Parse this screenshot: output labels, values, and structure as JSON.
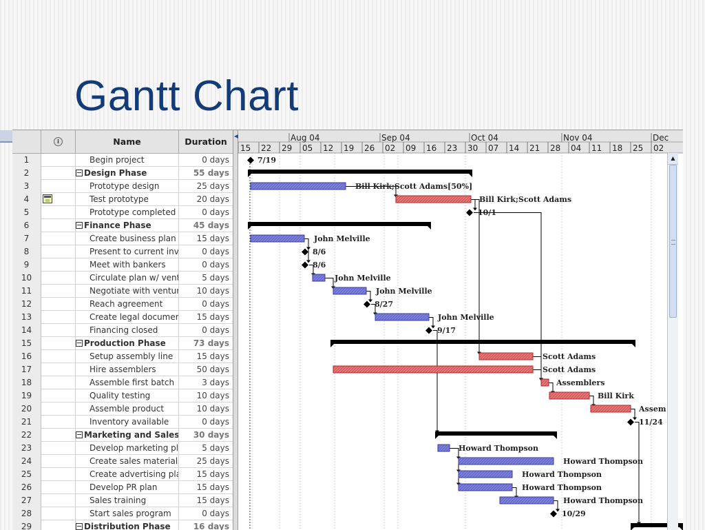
{
  "slide": {
    "title": "Gantt Chart"
  },
  "grid": {
    "headers": {
      "indicator_icon": "info-icon",
      "name": "Name",
      "duration": "Duration"
    },
    "rows": [
      {
        "id": "1",
        "name": "Begin project",
        "duration": "0 days",
        "summary": false
      },
      {
        "id": "2",
        "name": "Design Phase",
        "duration": "55 days",
        "summary": true
      },
      {
        "id": "3",
        "name": "Prototype design",
        "duration": "25 days",
        "summary": false
      },
      {
        "id": "4",
        "name": "Test prototype",
        "duration": "20 days",
        "summary": false,
        "icon": "calendar-note-icon"
      },
      {
        "id": "5",
        "name": "Prototype completed",
        "duration": "0 days",
        "summary": false
      },
      {
        "id": "6",
        "name": "Finance Phase",
        "duration": "45 days",
        "summary": true
      },
      {
        "id": "7",
        "name": "Create business plan",
        "duration": "15 days",
        "summary": false
      },
      {
        "id": "8",
        "name": "Present to current inve",
        "duration": "0 days",
        "summary": false
      },
      {
        "id": "9",
        "name": "Meet with bankers",
        "duration": "0 days",
        "summary": false
      },
      {
        "id": "10",
        "name": "Circulate plan w/ ventu",
        "duration": "5 days",
        "summary": false
      },
      {
        "id": "11",
        "name": "Negotiate with venture",
        "duration": "10 days",
        "summary": false
      },
      {
        "id": "12",
        "name": "Reach agreement",
        "duration": "0 days",
        "summary": false
      },
      {
        "id": "13",
        "name": "Create legal document",
        "duration": "15 days",
        "summary": false
      },
      {
        "id": "14",
        "name": "Financing closed",
        "duration": "0 days",
        "summary": false
      },
      {
        "id": "15",
        "name": "Production Phase",
        "duration": "73 days",
        "summary": true
      },
      {
        "id": "16",
        "name": "Setup assembly line",
        "duration": "15 days",
        "summary": false
      },
      {
        "id": "17",
        "name": "Hire assemblers",
        "duration": "50 days",
        "summary": false
      },
      {
        "id": "18",
        "name": "Assemble first batch",
        "duration": "3 days",
        "summary": false
      },
      {
        "id": "19",
        "name": "Quality testing",
        "duration": "10 days",
        "summary": false
      },
      {
        "id": "20",
        "name": "Assemble product",
        "duration": "10 days",
        "summary": false
      },
      {
        "id": "21",
        "name": "Inventory available",
        "duration": "0 days",
        "summary": false
      },
      {
        "id": "22",
        "name": "Marketing and Sales P",
        "duration": "30 days",
        "summary": true
      },
      {
        "id": "23",
        "name": "Develop marketing pla",
        "duration": "5 days",
        "summary": false
      },
      {
        "id": "24",
        "name": "Create sales materials",
        "duration": "25 days",
        "summary": false
      },
      {
        "id": "25",
        "name": "Create advertising pla",
        "duration": "15 days",
        "summary": false
      },
      {
        "id": "26",
        "name": "Develop PR plan",
        "duration": "15 days",
        "summary": false
      },
      {
        "id": "27",
        "name": "Sales training",
        "duration": "15 days",
        "summary": false
      },
      {
        "id": "28",
        "name": "Start sales program",
        "duration": "0 days",
        "summary": false
      },
      {
        "id": "29",
        "name": "Distribution Phase",
        "duration": "16 days",
        "summary": true
      }
    ]
  },
  "timeline": {
    "months": [
      "Aug 04",
      "Sep 04",
      "Oct 04",
      "Nov 04",
      "Dec"
    ],
    "weeks": [
      "15",
      "22",
      "29",
      "05",
      "12",
      "19",
      "26",
      "02",
      "09",
      "16",
      "23",
      "30",
      "07",
      "14",
      "21",
      "28",
      "04",
      "11",
      "18",
      "25",
      "02"
    ]
  },
  "colors": {
    "blue_bar": "#7c80d6",
    "blue_border": "#3a3ea0",
    "red_bar": "#e0787a",
    "red_border": "#b02a2a",
    "summary_bar": "#000000",
    "title": "#133b78"
  },
  "gantt": {
    "tasks": [
      {
        "type": "milestone",
        "label": "7/19"
      },
      {
        "type": "summary"
      },
      {
        "type": "bar",
        "color": "blue",
        "label": "Bill Kirk;Scott Adams[50%]"
      },
      {
        "type": "bar",
        "color": "red",
        "label": "Bill Kirk;Scott Adams"
      },
      {
        "type": "milestone",
        "label": "10/1"
      },
      {
        "type": "summary"
      },
      {
        "type": "bar",
        "color": "blue",
        "label": "John Melville"
      },
      {
        "type": "milestone",
        "label": "8/6"
      },
      {
        "type": "milestone",
        "label": "8/6"
      },
      {
        "type": "bar",
        "color": "blue",
        "label": "John Melville"
      },
      {
        "type": "bar",
        "color": "blue",
        "label": "John Melville"
      },
      {
        "type": "milestone",
        "label": "8/27"
      },
      {
        "type": "bar",
        "color": "blue",
        "label": "John Melville"
      },
      {
        "type": "milestone",
        "label": "9/17"
      },
      {
        "type": "summary"
      },
      {
        "type": "bar",
        "color": "red",
        "label": "Scott Adams"
      },
      {
        "type": "bar",
        "color": "red",
        "label": "Scott Adams"
      },
      {
        "type": "bar",
        "color": "red",
        "label": "Assemblers"
      },
      {
        "type": "bar",
        "color": "red",
        "label": "Bill Kirk"
      },
      {
        "type": "bar",
        "color": "red",
        "label": "Assem"
      },
      {
        "type": "milestone",
        "label": "11/24"
      },
      {
        "type": "summary"
      },
      {
        "type": "bar",
        "color": "blue",
        "label": "Howard Thompson"
      },
      {
        "type": "bar",
        "color": "blue",
        "label": "Howard Thompson"
      },
      {
        "type": "bar",
        "color": "blue",
        "label": "Howard Thompson"
      },
      {
        "type": "bar",
        "color": "blue",
        "label": "Howard Thompson"
      },
      {
        "type": "bar",
        "color": "blue",
        "label": "Howard Thompson"
      },
      {
        "type": "milestone",
        "label": "10/29"
      },
      {
        "type": "summary"
      }
    ]
  }
}
